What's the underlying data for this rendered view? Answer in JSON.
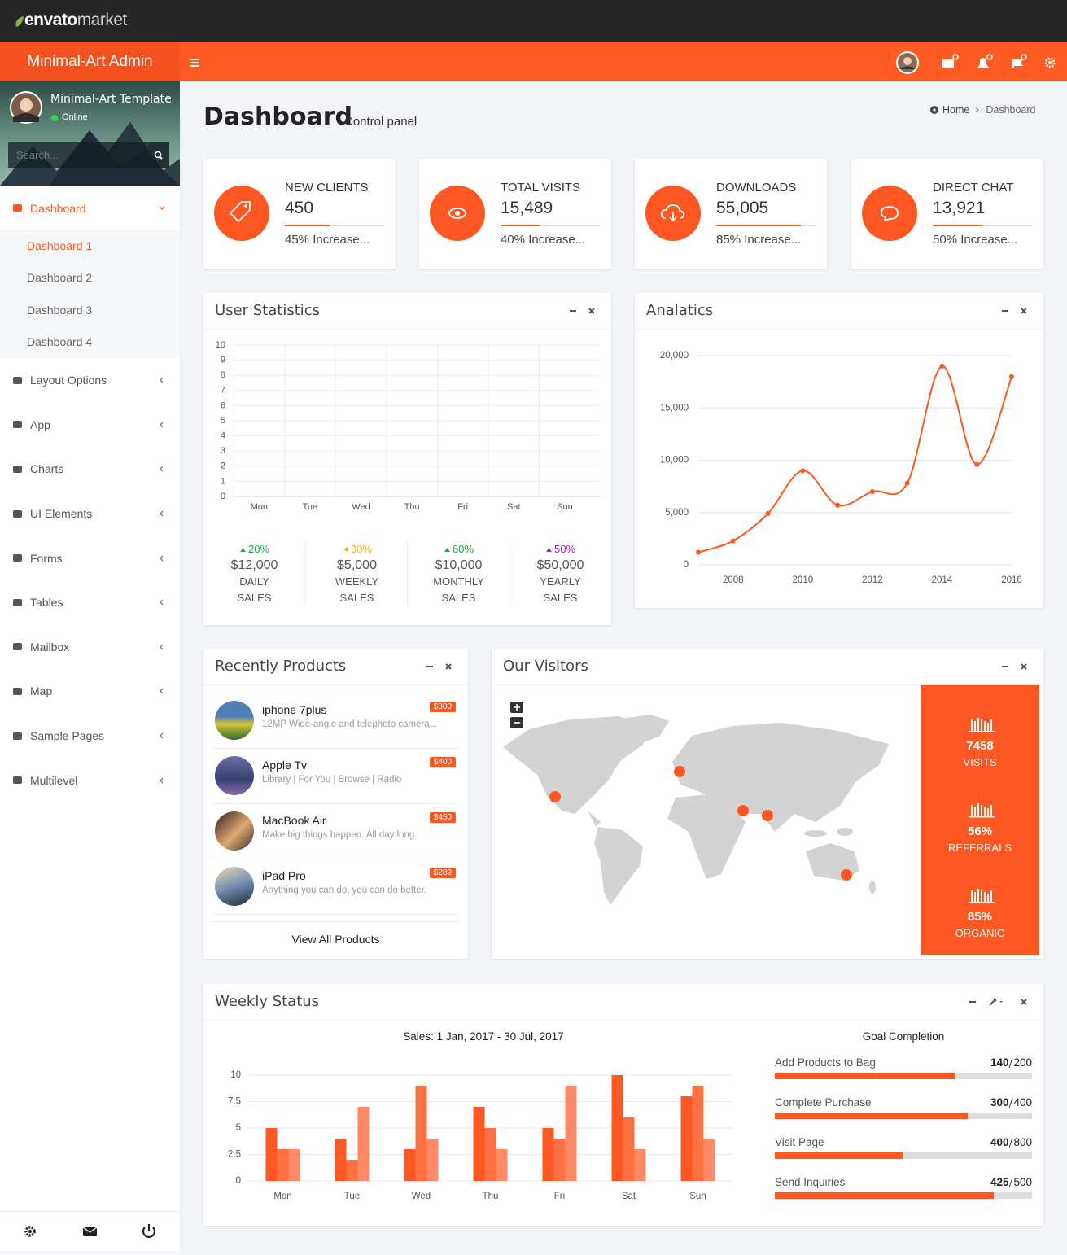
{
  "topbar": {
    "brand": "envato",
    "brand_suffix": "market"
  },
  "header": {
    "title": "Minimal-Art Admin"
  },
  "sidebar": {
    "user": {
      "name": "Minimal-Art Template",
      "status": "Online"
    },
    "search_placeholder": "Search...",
    "menu": [
      {
        "label": "Dashboard",
        "children": [
          "Dashboard 1",
          "Dashboard 2",
          "Dashboard 3",
          "Dashboard 4"
        ]
      },
      {
        "label": "Layout Options"
      },
      {
        "label": "App"
      },
      {
        "label": "Charts"
      },
      {
        "label": "UI Elements"
      },
      {
        "label": "Forms"
      },
      {
        "label": "Tables"
      },
      {
        "label": "Mailbox"
      },
      {
        "label": "Map"
      },
      {
        "label": "Sample Pages"
      },
      {
        "label": "Multilevel"
      }
    ]
  },
  "page": {
    "title": "Dashboard",
    "subtitle": "Control panel",
    "breadcrumb": [
      "Home",
      "Dashboard"
    ]
  },
  "stat_cards": [
    {
      "label": "NEW CLIENTS",
      "value": "450",
      "progress": 45,
      "note": "45% Increase..."
    },
    {
      "label": "TOTAL VISITS",
      "value": "15,489",
      "progress": 40,
      "note": "40% Increase..."
    },
    {
      "label": "DOWNLOADS",
      "value": "55,005",
      "progress": 85,
      "note": "85% Increase..."
    },
    {
      "label": "DIRECT CHAT",
      "value": "13,921",
      "progress": 50,
      "note": "50% Increase..."
    }
  ],
  "user_statistics": {
    "title": "User Statistics",
    "chart": {
      "type": "bar",
      "categories": [
        "Mon",
        "Tue",
        "Wed",
        "Thu",
        "Fri",
        "Sat",
        "Sun"
      ],
      "ylim": [
        0,
        10
      ],
      "yticks": [
        0,
        1,
        2,
        3,
        4,
        5,
        6,
        7,
        8,
        9,
        10
      ],
      "grid": true
    },
    "summary": [
      {
        "change": "20%",
        "direction": "up",
        "color": "#1fa84f",
        "amount": "$12,000",
        "label": "DAILY SALES"
      },
      {
        "change": "30%",
        "direction": "left",
        "color": "#f6b21c",
        "amount": "$5,000",
        "label": "WEEKLY SALES"
      },
      {
        "change": "60%",
        "direction": "up",
        "color": "#1fa84f",
        "amount": "$10,000",
        "label": "MONTHLY SALES"
      },
      {
        "change": "50%",
        "direction": "up",
        "color": "#a51ea8",
        "amount": "$50,000",
        "label": "YEARLY SALES"
      }
    ]
  },
  "analytics": {
    "title": "Analatics",
    "chart": {
      "type": "line",
      "x": [
        2007,
        2008,
        2009,
        2010,
        2011,
        2012,
        2013,
        2014,
        2015,
        2016
      ],
      "values": [
        1200,
        2300,
        4900,
        9000,
        5700,
        7000,
        7800,
        19000,
        9600,
        18000
      ],
      "color": "#ff5722",
      "xlim": [
        2007,
        2016
      ],
      "xticks": [
        2008,
        2010,
        2012,
        2014,
        2016
      ],
      "ylim": [
        0,
        20000
      ],
      "yticks": [
        0,
        {
          "value": 5000,
          "label": "5,000"
        },
        {
          "value": 10000,
          "label": "10,000"
        },
        {
          "value": 15000,
          "label": "15,000"
        },
        {
          "value": 20000,
          "label": "20,000"
        }
      ],
      "grid": true
    }
  },
  "recent_products": {
    "title": "Recently Products",
    "items": [
      {
        "name": "iphone 7plus",
        "description": "12MP Wide-angle and telephoto camera...",
        "price": "$300"
      },
      {
        "name": "Apple Tv",
        "description": "Library | For You | Browse | Radio",
        "price": "$400"
      },
      {
        "name": "MacBook Air",
        "description": "Make big things happen. All day long.",
        "price": "$450"
      },
      {
        "name": "iPad Pro",
        "description": "Anything you can do, you can do better.",
        "price": "$289"
      }
    ],
    "footer": "View All Products"
  },
  "visitors": {
    "title": "Our Visitors",
    "stats": [
      {
        "value": "7458",
        "label": "VISITS"
      },
      {
        "value": "56%",
        "label": "REFERRALS"
      },
      {
        "value": "85%",
        "label": "ORGANIC"
      }
    ]
  },
  "weekly_status": {
    "title": "Weekly Status",
    "chart": {
      "type": "bar",
      "title": "Sales: 1 Jan, 2017 - 30 Jul, 2017",
      "categories": [
        "Mon",
        "Tue",
        "Wed",
        "Thu",
        "Fri",
        "Sat",
        "Sun"
      ],
      "series": [
        {
          "color": "#ff5722",
          "values": [
            5,
            4,
            3,
            7,
            5,
            10,
            8
          ]
        },
        {
          "color": "#ff7043",
          "values": [
            3,
            2,
            9,
            5,
            4,
            6,
            9
          ]
        },
        {
          "color": "#ff8a65",
          "values": [
            3,
            7,
            4,
            3,
            9,
            3,
            4
          ]
        }
      ],
      "ylim": [
        0,
        10
      ],
      "yticks": [
        0,
        2.5,
        5,
        7.5,
        10
      ],
      "grid": true
    },
    "goals": {
      "title": "Goal Completion",
      "items": [
        {
          "label": "Add Products to Bag",
          "value": 140,
          "total": 200
        },
        {
          "label": "Complete Purchase",
          "value": 300,
          "total": 400
        },
        {
          "label": "Visit Page",
          "value": 400,
          "total": 800
        },
        {
          "label": "Send Inquiries",
          "value": 425,
          "total": 500
        }
      ]
    }
  }
}
